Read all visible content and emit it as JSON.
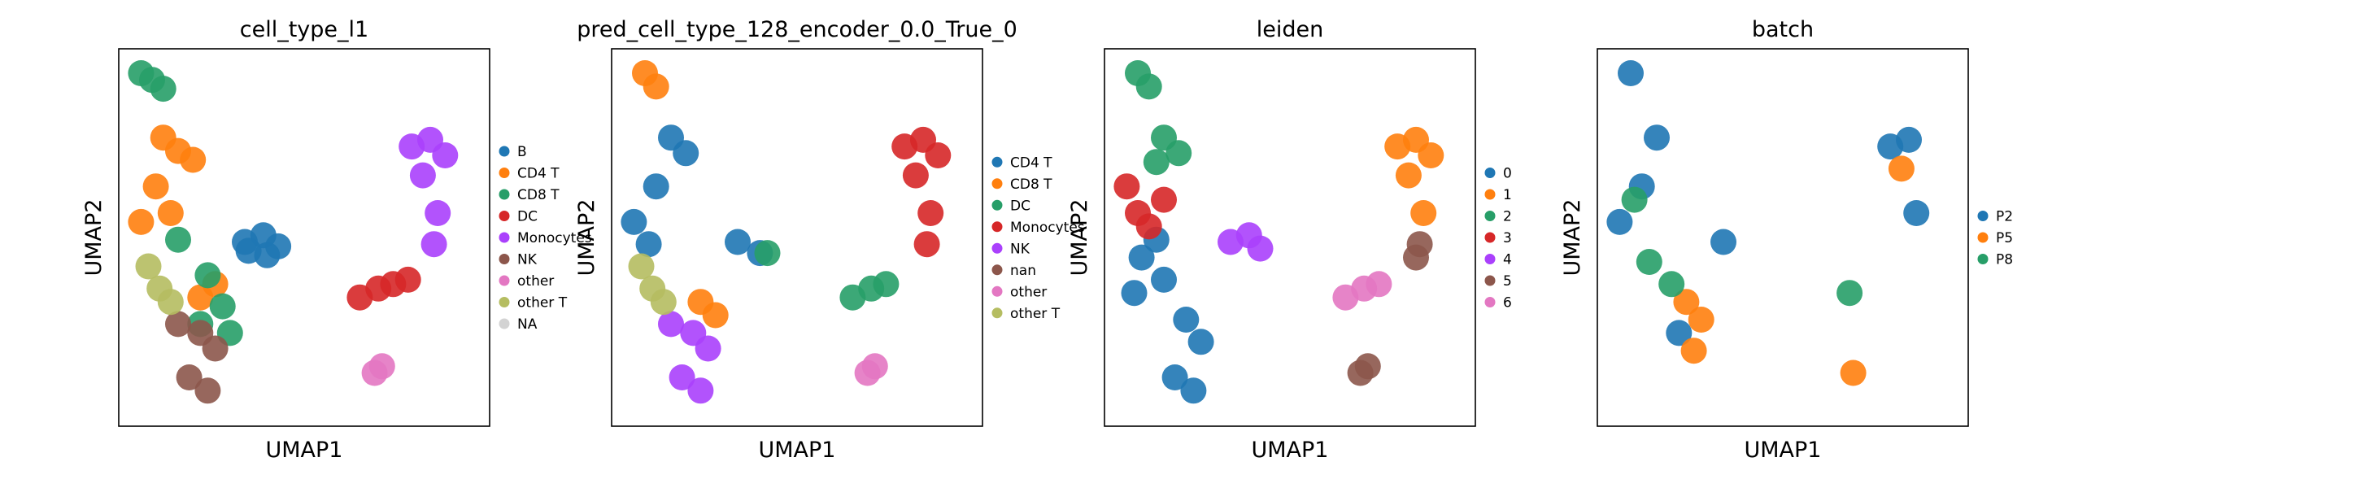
{
  "chart_data": [
    {
      "type": "scatter",
      "title": "cell_type_l1",
      "xlabel": "UMAP1",
      "ylabel": "UMAP2",
      "grid": false,
      "legend_placement": "right",
      "series": [
        {
          "name": "B",
          "color": "#1f77b4",
          "x": [
            3.4,
            3.9,
            4.3,
            4.0,
            3.5
          ],
          "y": [
            8.3,
            8.6,
            8.1,
            7.7,
            7.9
          ]
        },
        {
          "name": "CD4 T",
          "color": "#ff7f0e",
          "x": [
            1.2,
            1.6,
            2.0,
            1.0,
            0.6,
            1.4,
            2.2,
            2.6
          ],
          "y": [
            13.0,
            12.4,
            12.0,
            10.8,
            9.2,
            9.6,
            5.8,
            6.4
          ]
        },
        {
          "name": "CD8 T",
          "color": "#279e68",
          "x": [
            0.6,
            0.9,
            1.2,
            1.6,
            2.4,
            2.8,
            2.2,
            3.0
          ],
          "y": [
            15.9,
            15.6,
            15.2,
            8.4,
            6.8,
            5.4,
            4.6,
            4.2
          ]
        },
        {
          "name": "DC",
          "color": "#d62728",
          "x": [
            6.5,
            7.0,
            7.4,
            7.8
          ],
          "y": [
            5.8,
            6.2,
            6.4,
            6.6
          ]
        },
        {
          "name": "Monocytes",
          "color": "#aa40fc",
          "x": [
            7.9,
            8.4,
            8.8,
            8.2,
            8.6,
            8.5
          ],
          "y": [
            12.6,
            12.9,
            12.2,
            11.3,
            9.6,
            8.2
          ]
        },
        {
          "name": "NK",
          "color": "#8c564b",
          "x": [
            1.6,
            2.2,
            2.6,
            1.9,
            2.4
          ],
          "y": [
            4.6,
            4.2,
            3.5,
            2.2,
            1.6
          ]
        },
        {
          "name": "other",
          "color": "#e377c2",
          "x": [
            6.9,
            7.1
          ],
          "y": [
            2.4,
            2.7
          ]
        },
        {
          "name": "other T",
          "color": "#b5bd61",
          "x": [
            0.8,
            1.1,
            1.4
          ],
          "y": [
            7.2,
            6.2,
            5.6
          ]
        },
        {
          "name": "NA",
          "color": "#d3d3d3",
          "x": [],
          "y": []
        }
      ]
    },
    {
      "type": "scatter",
      "title": "pred_cell_type_128_encoder_0.0_True_0",
      "xlabel": "UMAP1",
      "ylabel": "UMAP2",
      "grid": false,
      "legend_placement": "right",
      "series": [
        {
          "name": "CD4 T",
          "color": "#1f77b4",
          "x": [
            1.6,
            2.0,
            1.2,
            0.6,
            1.0,
            3.4,
            4.0
          ],
          "y": [
            13.0,
            12.3,
            10.8,
            9.2,
            8.2,
            8.3,
            7.8
          ]
        },
        {
          "name": "CD8 T",
          "color": "#ff7f0e",
          "x": [
            0.9,
            1.2,
            2.4,
            2.8
          ],
          "y": [
            15.9,
            15.3,
            5.6,
            5.0
          ]
        },
        {
          "name": "DC",
          "color": "#279e68",
          "x": [
            6.5,
            7.0,
            7.4,
            4.2
          ],
          "y": [
            5.8,
            6.2,
            6.4,
            7.8
          ]
        },
        {
          "name": "Monocytes",
          "color": "#d62728",
          "x": [
            7.9,
            8.4,
            8.8,
            8.2,
            8.6,
            8.5
          ],
          "y": [
            12.6,
            12.9,
            12.2,
            11.3,
            9.6,
            8.2
          ]
        },
        {
          "name": "NK",
          "color": "#aa40fc",
          "x": [
            1.6,
            2.2,
            2.6,
            1.9,
            2.4
          ],
          "y": [
            4.6,
            4.2,
            3.5,
            2.2,
            1.6
          ]
        },
        {
          "name": "nan",
          "color": "#8c564b",
          "x": [],
          "y": []
        },
        {
          "name": "other",
          "color": "#e377c2",
          "x": [
            6.9,
            7.1
          ],
          "y": [
            2.4,
            2.7
          ]
        },
        {
          "name": "other T",
          "color": "#b5bd61",
          "x": [
            0.8,
            1.1,
            1.4
          ],
          "y": [
            7.2,
            6.2,
            5.6
          ]
        }
      ]
    },
    {
      "type": "scatter",
      "title": "leiden",
      "xlabel": "UMAP1",
      "ylabel": "UMAP2",
      "grid": false,
      "legend_placement": "right",
      "series": [
        {
          "name": "0",
          "color": "#1f77b4",
          "x": [
            1.0,
            1.6,
            2.2,
            2.6,
            1.9,
            2.4,
            1.4,
            0.8
          ],
          "y": [
            7.6,
            6.6,
            4.8,
            3.8,
            2.2,
            1.6,
            8.4,
            6.0
          ]
        },
        {
          "name": "1",
          "color": "#ff7f0e",
          "x": [
            7.9,
            8.4,
            8.8,
            8.2,
            8.6
          ],
          "y": [
            12.6,
            12.9,
            12.2,
            11.3,
            9.6
          ]
        },
        {
          "name": "2",
          "color": "#279e68",
          "x": [
            0.9,
            1.2,
            1.6,
            2.0,
            1.4
          ],
          "y": [
            15.9,
            15.3,
            13.0,
            12.3,
            11.9
          ]
        },
        {
          "name": "3",
          "color": "#d62728",
          "x": [
            0.6,
            0.9,
            1.2,
            1.6
          ],
          "y": [
            10.8,
            9.6,
            9.0,
            10.2
          ]
        },
        {
          "name": "4",
          "color": "#aa40fc",
          "x": [
            3.4,
            3.9,
            4.2
          ],
          "y": [
            8.3,
            8.6,
            8.0
          ]
        },
        {
          "name": "5",
          "color": "#8c564b",
          "x": [
            8.5,
            8.4,
            7.1,
            6.9
          ],
          "y": [
            8.2,
            7.6,
            2.7,
            2.4
          ]
        },
        {
          "name": "6",
          "color": "#e377c2",
          "x": [
            6.5,
            7.0,
            7.4
          ],
          "y": [
            5.8,
            6.2,
            6.4
          ]
        }
      ]
    },
    {
      "type": "scatter",
      "title": "batch",
      "xlabel": "UMAP1",
      "ylabel": "UMAP2",
      "grid": false,
      "legend_placement": "right",
      "series": [
        {
          "name": "P2",
          "color": "#1f77b4",
          "x": [
            0.9,
            1.6,
            1.2,
            0.6,
            2.2,
            3.4,
            7.9,
            8.4,
            8.6
          ],
          "y": [
            15.9,
            13.0,
            10.8,
            9.2,
            4.2,
            8.3,
            12.6,
            12.9,
            9.6
          ]
        },
        {
          "name": "P5",
          "color": "#ff7f0e",
          "x": [
            2.4,
            2.8,
            2.6,
            8.2,
            6.9
          ],
          "y": [
            5.6,
            4.8,
            3.4,
            11.6,
            2.4
          ]
        },
        {
          "name": "P8",
          "color": "#279e68",
          "x": [
            1.0,
            1.4,
            2.0,
            6.8
          ],
          "y": [
            10.2,
            7.4,
            6.4,
            6.0
          ]
        }
      ]
    }
  ]
}
